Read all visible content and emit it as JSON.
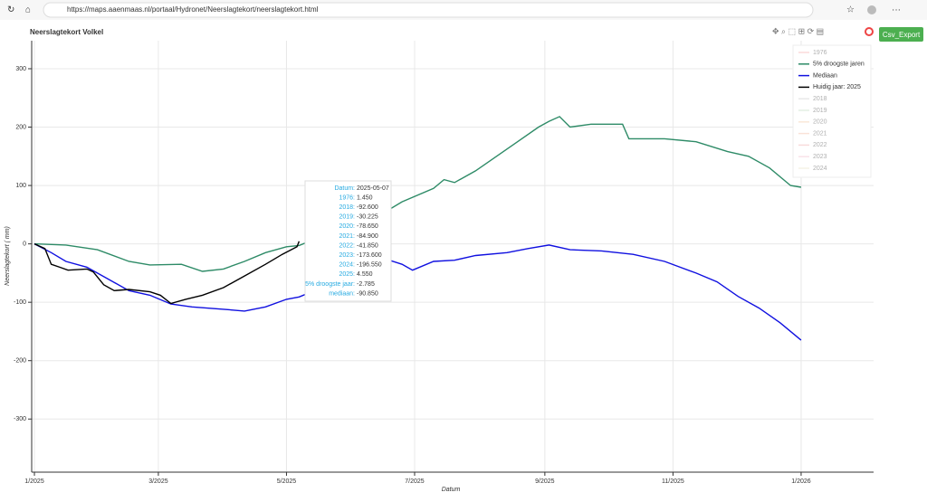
{
  "browser": {
    "url": "https://maps.aaenmaas.nl/portaal/Hydronet/Neerslagtekort/neerslagtekort.html"
  },
  "export_button": "Csv_Export",
  "chart_data": {
    "type": "line",
    "title": "Neerslagtekort Volkel",
    "x_label": "Datum",
    "y_label": "Neerslagtekort ( mm)",
    "xlim": [
      -1.3,
      399.5
    ],
    "xticks": [
      {
        "value": 0,
        "label": "1/2025"
      },
      {
        "value": 59,
        "label": "3/2025"
      },
      {
        "value": 120,
        "label": "5/2025"
      },
      {
        "value": 181,
        "label": "7/2025"
      },
      {
        "value": 243,
        "label": "9/2025"
      },
      {
        "value": 304,
        "label": "11/2025"
      },
      {
        "value": 365,
        "label": "1/2026"
      }
    ],
    "ylim": [
      -391,
      348
    ],
    "yticks": [
      -300,
      -200,
      -100,
      0,
      100,
      200,
      300
    ],
    "grid": true,
    "series": [
      {
        "name": "5% droogste jaren",
        "color": "#2e8b67",
        "x": [
          0,
          15,
          30,
          45,
          55,
          70,
          80,
          90,
          100,
          110,
          120,
          126,
          169,
          175,
          190,
          195,
          200,
          210,
          220,
          230,
          240,
          245,
          250,
          255,
          265,
          280,
          283,
          300,
          315,
          330,
          340,
          350,
          360,
          365
        ],
        "values": [
          0,
          -2,
          -10,
          -30,
          -36,
          -35,
          -47,
          -43,
          -30,
          -15,
          -5,
          -2.785,
          59,
          72,
          95,
          110,
          105,
          125,
          150,
          175,
          200,
          210,
          218,
          200,
          205,
          205,
          180,
          180,
          175,
          158,
          150,
          130,
          100,
          97
        ]
      },
      {
        "name": "Mediaan",
        "color": "#1010e0",
        "x": [
          0,
          8,
          15,
          25,
          35,
          45,
          55,
          65,
          75,
          90,
          100,
          110,
          120,
          126,
          169,
          175,
          180,
          190,
          200,
          210,
          225,
          235,
          245,
          255,
          270,
          285,
          300,
          315,
          325,
          335,
          345,
          355,
          365
        ],
        "values": [
          0,
          -15,
          -30,
          -40,
          -60,
          -80,
          -88,
          -103,
          -108,
          -112,
          -115,
          -108,
          -95,
          -90.85,
          -28,
          -35,
          -45,
          -30,
          -28,
          -20,
          -15,
          -8,
          -2,
          -10,
          -12,
          -18,
          -30,
          -50,
          -65,
          -90,
          -110,
          -135,
          -165
        ]
      },
      {
        "name": "Huidig jaar: 2025",
        "color": "#000000",
        "x": [
          0,
          5,
          8,
          12,
          16,
          25,
          28,
          33,
          38,
          45,
          55,
          60,
          65,
          72,
          80,
          90,
          100,
          110,
          118,
          125,
          126
        ],
        "values": [
          0,
          -8,
          -35,
          -40,
          -45,
          -43,
          -48,
          -70,
          -80,
          -78,
          -82,
          -88,
          -102,
          -95,
          -88,
          -75,
          -55,
          -35,
          -18,
          -5,
          4.55
        ]
      }
    ],
    "legend": [
      {
        "name": "1976",
        "color": "#f4a6a6",
        "muted": true
      },
      {
        "series": 0
      },
      {
        "series": 1
      },
      {
        "series": 2
      },
      {
        "name": "2018",
        "color": "#c8c8c8",
        "muted": true
      },
      {
        "name": "2019",
        "color": "#b8d8b8",
        "muted": true
      },
      {
        "name": "2020",
        "color": "#f4c8a0",
        "muted": true
      },
      {
        "name": "2021",
        "color": "#f4b8a0",
        "muted": true
      },
      {
        "name": "2022",
        "color": "#f0a8a8",
        "muted": true
      },
      {
        "name": "2023",
        "color": "#f4b8c8",
        "muted": true
      },
      {
        "name": "2024",
        "color": "#e8e0c0",
        "muted": true
      }
    ],
    "tooltip": [
      [
        "Datum:",
        "2025-05-07"
      ],
      [
        "1976:",
        "1.450"
      ],
      [
        "2018:",
        "-92.600"
      ],
      [
        "2019:",
        "-30.225"
      ],
      [
        "2020:",
        "-78.650"
      ],
      [
        "2021:",
        "-84.900"
      ],
      [
        "2022:",
        "-41.850"
      ],
      [
        "2023:",
        "-173.600"
      ],
      [
        "2024:",
        "-196.550"
      ],
      [
        "2025:",
        "4.550"
      ],
      [
        "5% droogste jaar:",
        "-2.785"
      ],
      [
        "mediaan:",
        "-90.850"
      ]
    ]
  }
}
